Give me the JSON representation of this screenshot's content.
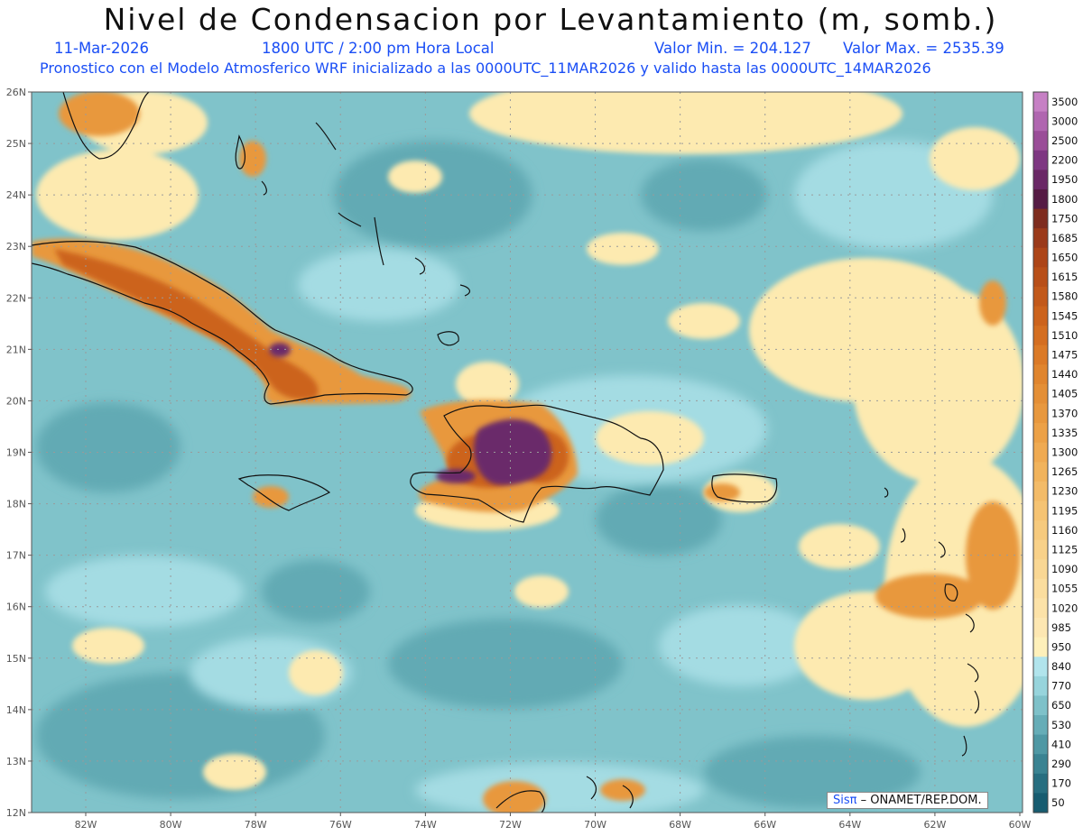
{
  "header": {
    "title": "Nivel de Condensacion por Levantamiento (m, somb.)",
    "date": "11-Mar-2026",
    "time": "1800 UTC / 2:00 pm Hora Local",
    "val_min": "Valor Min. = 204.127",
    "val_max": "Valor Max. = 2535.39",
    "pronostico": "Pronostico con el Modelo Atmosferico WRF inicializado a las 0000UTC_11MAR2026 y valido hasta las  0000UTC_14MAR2026"
  },
  "map": {
    "lat_labels": [
      "26N",
      "25N",
      "24N",
      "23N",
      "22N",
      "21N",
      "20N",
      "19N",
      "18N",
      "17N",
      "16N",
      "15N",
      "14N",
      "13N",
      "12N"
    ],
    "lon_labels": [
      "82W",
      "80W",
      "78W",
      "76W",
      "74W",
      "72W",
      "70W",
      "68W",
      "66W",
      "64W",
      "62W",
      "60W"
    ],
    "colorbar": {
      "labels": [
        "3500",
        "3000",
        "2500",
        "2200",
        "1950",
        "1800",
        "1750",
        "1685",
        "1650",
        "1615",
        "1580",
        "1545",
        "1510",
        "1475",
        "1440",
        "1405",
        "1370",
        "1335",
        "1300",
        "1265",
        "1230",
        "1195",
        "1160",
        "1125",
        "1090",
        "1055",
        "1020",
        "985",
        "950",
        "840",
        "770",
        "650",
        "530",
        "410",
        "290",
        "170",
        "50"
      ],
      "colors": [
        "#c680c4",
        "#b066b0",
        "#9a4d98",
        "#7e3782",
        "#6a2866",
        "#551b44",
        "#7e2c1f",
        "#9b3a1a",
        "#ad4518",
        "#b84f19",
        "#c2591b",
        "#cc631d",
        "#d46e21",
        "#db7a27",
        "#e0852e",
        "#e48f36",
        "#e8983e",
        "#eca147",
        "#efaa52",
        "#f1b35c",
        "#f3bb68",
        "#f5c373",
        "#f6ca7e",
        "#f8d189",
        "#f9d794",
        "#fbdd9e",
        "#fce2a8",
        "#fde7b2",
        "#fef0ba",
        "#b1e4ec",
        "#97d4dc",
        "#7ec1c9",
        "#66adb7",
        "#4f98a4",
        "#3a8392",
        "#276e80",
        "#175c70"
      ]
    },
    "regions": {
      "ocean_base": "#80c3ca",
      "ocean_dark": "#62aab4",
      "ocean_light": "#a4dce3",
      "dry_yellow": "#fdeab0",
      "orange": "#e8983e",
      "dark_orange": "#cc631d",
      "brown": "#7e2c1f",
      "purple": "#6b2a6a"
    }
  },
  "footer": {
    "credit_sis": "Sisπ",
    "credit_rest": "– ONAMET/REP.DOM."
  }
}
